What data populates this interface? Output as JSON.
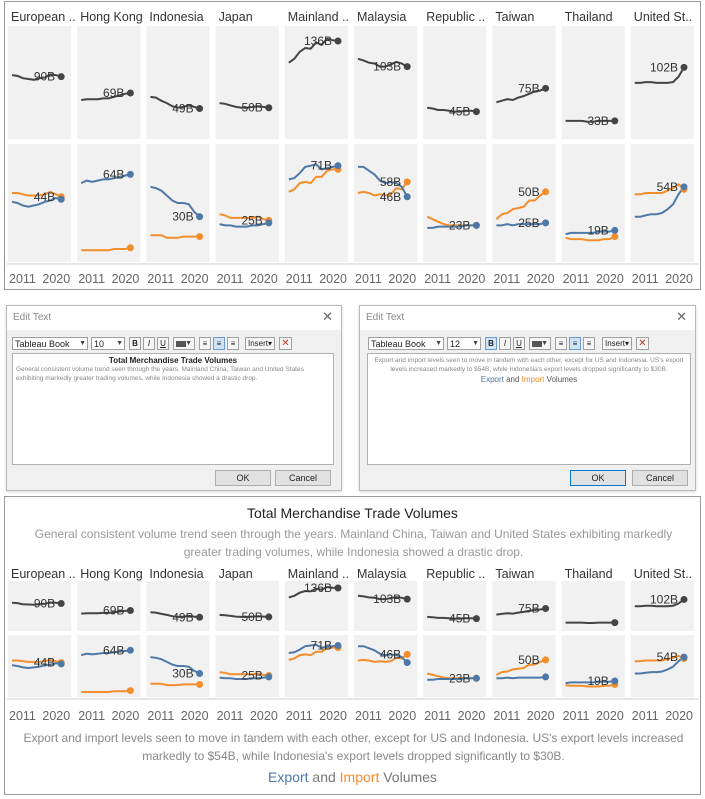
{
  "colors": {
    "panel_bg": "#f1f1f1",
    "total_line": "#444444",
    "export": "#4e79a7",
    "import": "#f28e2b"
  },
  "top_view": {
    "countries": [
      "European ..",
      "Hong Kong",
      "Indonesia",
      "Japan",
      "Mainland ..",
      "Malaysia",
      "Republic ..",
      "Taiwan",
      "Thailand",
      "United St.."
    ],
    "total_labels": [
      "90B",
      "69B",
      "49B",
      "50B",
      "136B",
      "103B",
      "45B",
      "75B",
      "33B",
      "102B"
    ],
    "trade_labels": [
      "44B",
      "64B",
      "30B",
      "25B",
      "71B",
      "58B",
      "23B",
      "50B",
      "19B",
      "54B"
    ],
    "trade_labels_extra": [
      "",
      "",
      "",
      "",
      "",
      "46B",
      "",
      "25B",
      "",
      ""
    ],
    "x_axis": [
      "2011",
      "2020"
    ]
  },
  "dialog_left": {
    "title": "Edit Text",
    "close": "✕",
    "font": "Tableau Book",
    "size": "10",
    "bold": "B",
    "italic": "I",
    "underline": "U",
    "insert": "Insert▾",
    "clear": "✕",
    "content_title": "Total Merchandise Trade Volumes",
    "content_body": "General consistent volume trend seen through the years. Mainland China, Taiwan and United States exhibiting markedly greater trading volumes, while Indonesia showed a drastic drop.",
    "ok": "OK",
    "cancel": "Cancel"
  },
  "dialog_right": {
    "title": "Edit Text",
    "close": "✕",
    "font": "Tableau Book",
    "size": "12",
    "bold": "B",
    "italic": "I",
    "underline": "U",
    "insert": "Insert▾",
    "clear": "✕",
    "content_body": "Export and import levels seen to move in tandem with each other, except for US and Indonesia. US's export levels increased markedly to $54B, while Indonesia's export levels dropped significantly to $30B.",
    "legend_export": "Export",
    "legend_and": " and ",
    "legend_import": "Import",
    "legend_volumes": " Volumes",
    "ok": "OK",
    "cancel": "Cancel"
  },
  "bottom_view": {
    "title": "Total Merchandise Trade Volumes",
    "subtitle": "General consistent volume trend seen through the years. Mainland China, Taiwan and United States exhibiting markedly greater trading volumes, while Indonesia showed a drastic drop.",
    "countries": [
      "European ..",
      "Hong Kong",
      "Indonesia",
      "Japan",
      "Mainland ..",
      "Malaysia",
      "Republic ..",
      "Taiwan",
      "Thailand",
      "United St.."
    ],
    "total_labels": [
      "90B",
      "69B",
      "49B",
      "50B",
      "136B",
      "103B",
      "45B",
      "75B",
      "",
      "102B"
    ],
    "trade_labels": [
      "44B",
      "64B",
      "30B",
      "25B",
      "71B",
      "46B",
      "23B",
      "50B",
      "19B",
      "54B"
    ],
    "x_axis": [
      "2011",
      "2020"
    ],
    "footnote": "Export and import levels seen to move in tandem with each other, except for US and Indonesia. US's export levels increased markedly to $54B, while Indonesia's export levels dropped significantly to $30B.",
    "legend_export": "Export",
    "legend_and": " and ",
    "legend_import": "Import",
    "legend_volumes": " Volumes"
  },
  "chart_data": [
    {
      "type": "line",
      "title": "Total Merchandise Trade Volumes",
      "x": [
        "2011",
        "2012",
        "2013",
        "2014",
        "2015",
        "2016",
        "2017",
        "2018",
        "2019",
        "2020"
      ],
      "series": [
        {
          "name": "European ..",
          "values": [
            92,
            91,
            88,
            87,
            86,
            88,
            89,
            93,
            92,
            90
          ]
        },
        {
          "name": "Hong Kong",
          "values": [
            60,
            61,
            61,
            61,
            62,
            62,
            64,
            66,
            68,
            69
          ]
        },
        {
          "name": "Indonesia",
          "values": [
            64,
            63,
            59,
            56,
            52,
            50,
            51,
            53,
            51,
            49
          ]
        },
        {
          "name": "Japan",
          "values": [
            56,
            55,
            53,
            51,
            50,
            50,
            51,
            52,
            51,
            50
          ]
        },
        {
          "name": "Mainland ..",
          "values": [
            108,
            113,
            122,
            127,
            126,
            134,
            131,
            139,
            137,
            136
          ]
        },
        {
          "name": "Malaysia",
          "values": [
            113,
            111,
            108,
            107,
            103,
            103,
            106,
            109,
            107,
            103
          ]
        },
        {
          "name": "Republic ..",
          "values": [
            50,
            49,
            47,
            47,
            46,
            45,
            45,
            46,
            46,
            45
          ]
        },
        {
          "name": "Taiwan",
          "values": [
            57,
            59,
            61,
            60,
            63,
            65,
            68,
            71,
            72,
            75
          ]
        },
        {
          "name": "Thailand",
          "values": [
            33,
            33,
            33,
            33,
            32,
            32,
            33,
            33,
            33,
            33
          ]
        },
        {
          "name": "United St..",
          "values": [
            82,
            82,
            83,
            83,
            82,
            82,
            82,
            83,
            90,
            102
          ]
        }
      ]
    },
    {
      "type": "line",
      "title": "Export and Import Volumes",
      "x": [
        "2011",
        "2012",
        "2013",
        "2014",
        "2015",
        "2016",
        "2017",
        "2018",
        "2019",
        "2020"
      ],
      "series": [
        {
          "name": "European .. Export",
          "values": [
            42,
            41,
            39,
            38,
            39,
            40,
            42,
            43,
            45,
            44
          ]
        },
        {
          "name": "European .. Import",
          "values": [
            49,
            49,
            48,
            47,
            47,
            47,
            48,
            50,
            48,
            46
          ]
        },
        {
          "name": "Hong Kong Export",
          "values": [
            57,
            59,
            58,
            59,
            60,
            60,
            61,
            62,
            63,
            64
          ]
        },
        {
          "name": "Hong Kong Import",
          "values": [
            3,
            3,
            3,
            3,
            3,
            3,
            4,
            4,
            4,
            5
          ]
        },
        {
          "name": "Indonesia Export",
          "values": [
            54,
            53,
            51,
            47,
            43,
            41,
            41,
            40,
            34,
            30
          ]
        },
        {
          "name": "Indonesia Import",
          "values": [
            15,
            15,
            15,
            13,
            13,
            13,
            14,
            14,
            14,
            14
          ]
        },
        {
          "name": "Japan Export",
          "values": [
            24,
            23,
            23,
            22,
            22,
            22,
            23,
            23,
            24,
            25
          ]
        },
        {
          "name": "Japan Import",
          "values": [
            32,
            31,
            29,
            29,
            29,
            29,
            29,
            30,
            28,
            27
          ]
        },
        {
          "name": "Mainland .. Export",
          "values": [
            60,
            61,
            65,
            70,
            71,
            72,
            68,
            69,
            70,
            71
          ]
        },
        {
          "name": "Mainland .. Import",
          "values": [
            50,
            52,
            57,
            58,
            57,
            62,
            62,
            67,
            68,
            68
          ]
        },
        {
          "name": "Malaysia Export",
          "values": [
            70,
            70,
            67,
            64,
            59,
            57,
            58,
            57,
            54,
            46
          ]
        },
        {
          "name": "Malaysia Import",
          "values": [
            49,
            50,
            49,
            47,
            48,
            47,
            48,
            53,
            52,
            58
          ]
        },
        {
          "name": "Republic .. Export",
          "values": [
            21,
            21,
            22,
            22,
            22,
            22,
            22,
            23,
            23,
            23
          ]
        },
        {
          "name": "Republic .. Import",
          "values": [
            30,
            28,
            26,
            24,
            23,
            23,
            23,
            23,
            23,
            23
          ]
        },
        {
          "name": "Taiwan Export",
          "values": [
            23,
            23,
            24,
            23,
            24,
            24,
            24,
            24,
            24,
            25
          ]
        },
        {
          "name": "Taiwan Import",
          "values": [
            28,
            32,
            33,
            36,
            37,
            38,
            43,
            43,
            47,
            50
          ]
        },
        {
          "name": "Thailand Export",
          "values": [
            16,
            17,
            17,
            17,
            17,
            17,
            18,
            18,
            18,
            19
          ]
        },
        {
          "name": "Thailand Import",
          "values": [
            13,
            12,
            12,
            12,
            11,
            11,
            11,
            12,
            12,
            14
          ]
        },
        {
          "name": "United St.. Export",
          "values": [
            30,
            30,
            31,
            32,
            32,
            33,
            36,
            40,
            48,
            54
          ]
        },
        {
          "name": "United St.. Import",
          "values": [
            48,
            48,
            49,
            49,
            49,
            49,
            51,
            53,
            56,
            52
          ]
        }
      ]
    }
  ]
}
